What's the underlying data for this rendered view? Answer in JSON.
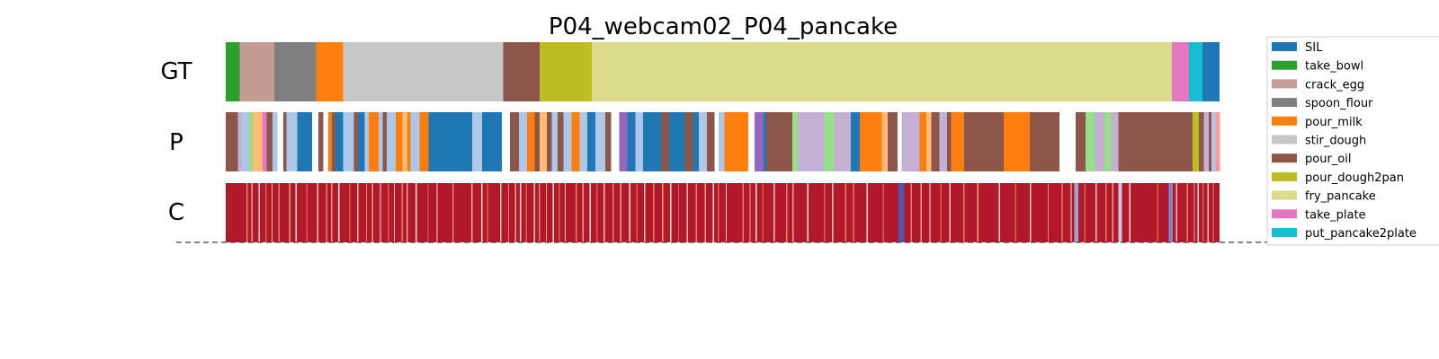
{
  "chart_data": {
    "type": "heatmap",
    "title": "P04_webcam02_P04_pancake",
    "rows": [
      "GT",
      "P",
      "C"
    ],
    "legend_position": "right",
    "classes": [
      {
        "name": "SIL",
        "color": "#1f77b4"
      },
      {
        "name": "take_bowl",
        "color": "#2ca02c"
      },
      {
        "name": "crack_egg",
        "color": "#c49c94"
      },
      {
        "name": "spoon_flour",
        "color": "#7f7f7f"
      },
      {
        "name": "pour_milk",
        "color": "#ff7f0e"
      },
      {
        "name": "stir_dough",
        "color": "#c7c7c7"
      },
      {
        "name": "pour_oil",
        "color": "#8c564b"
      },
      {
        "name": "pour_dough2pan",
        "color": "#bcbd22"
      },
      {
        "name": "fry_pancake",
        "color": "#dbdb8d"
      },
      {
        "name": "take_plate",
        "color": "#e377c2"
      },
      {
        "name": "put_pancake2plate",
        "color": "#17becf"
      }
    ],
    "gt_segments": [
      {
        "start": 0.0,
        "end": 1.4,
        "class": "take_bowl"
      },
      {
        "start": 1.4,
        "end": 4.9,
        "class": "crack_egg"
      },
      {
        "start": 4.9,
        "end": 9.1,
        "class": "spoon_flour"
      },
      {
        "start": 9.1,
        "end": 11.8,
        "class": "pour_milk"
      },
      {
        "start": 11.8,
        "end": 27.9,
        "class": "stir_dough"
      },
      {
        "start": 27.9,
        "end": 31.6,
        "class": "pour_oil"
      },
      {
        "start": 31.6,
        "end": 36.9,
        "class": "pour_dough2pan"
      },
      {
        "start": 36.9,
        "end": 95.2,
        "class": "fry_pancake"
      },
      {
        "start": 95.2,
        "end": 96.9,
        "class": "take_plate"
      },
      {
        "start": 96.9,
        "end": 98.3,
        "class": "put_pancake2plate"
      },
      {
        "start": 98.3,
        "end": 100.0,
        "class": "SIL"
      }
    ],
    "pred_segments": [
      {
        "start": 0.0,
        "end": 1.2,
        "color": "#8c564b"
      },
      {
        "start": 1.2,
        "end": 1.6,
        "color": "#c5b0d5"
      },
      {
        "start": 1.6,
        "end": 2.3,
        "color": "#aec7e8"
      },
      {
        "start": 2.3,
        "end": 2.7,
        "color": "#98df8a"
      },
      {
        "start": 2.7,
        "end": 3.7,
        "color": "#ffbb78"
      },
      {
        "start": 3.7,
        "end": 4.1,
        "color": "#e377c2"
      },
      {
        "start": 4.1,
        "end": 4.7,
        "color": "#8c564b"
      },
      {
        "start": 4.7,
        "end": 5.2,
        "color": "#aec7e8"
      },
      {
        "start": 5.2,
        "end": 5.8,
        "color": "#ffffff"
      },
      {
        "start": 5.8,
        "end": 6.1,
        "color": "#8c564b"
      },
      {
        "start": 6.1,
        "end": 7.2,
        "color": "#aec7e8"
      },
      {
        "start": 7.2,
        "end": 8.7,
        "color": "#1f77b4"
      },
      {
        "start": 8.7,
        "end": 9.3,
        "color": "#ffffff"
      },
      {
        "start": 9.3,
        "end": 9.8,
        "color": "#8c564b"
      },
      {
        "start": 9.8,
        "end": 10.3,
        "color": "#ffffff"
      },
      {
        "start": 10.3,
        "end": 10.7,
        "color": "#ff7f0e"
      },
      {
        "start": 10.7,
        "end": 11.0,
        "color": "#8c564b"
      },
      {
        "start": 11.0,
        "end": 11.8,
        "color": "#1f77b4"
      },
      {
        "start": 11.8,
        "end": 12.9,
        "color": "#aec7e8"
      },
      {
        "start": 12.9,
        "end": 13.3,
        "color": "#8c564b"
      },
      {
        "start": 13.3,
        "end": 14.0,
        "color": "#1f77b4"
      },
      {
        "start": 14.0,
        "end": 14.4,
        "color": "#aec7e8"
      },
      {
        "start": 14.4,
        "end": 15.4,
        "color": "#ff7f0e"
      },
      {
        "start": 15.4,
        "end": 15.8,
        "color": "#aec7e8"
      },
      {
        "start": 15.8,
        "end": 16.2,
        "color": "#8c564b"
      },
      {
        "start": 16.2,
        "end": 17.1,
        "color": "#aec7e8"
      },
      {
        "start": 17.1,
        "end": 17.8,
        "color": "#ff7f0e"
      },
      {
        "start": 17.8,
        "end": 18.3,
        "color": "#ffbb78"
      },
      {
        "start": 18.3,
        "end": 18.6,
        "color": "#ff7f0e"
      },
      {
        "start": 18.6,
        "end": 19.5,
        "color": "#aec7e8"
      },
      {
        "start": 19.5,
        "end": 20.4,
        "color": "#ff7f0e"
      },
      {
        "start": 20.4,
        "end": 24.8,
        "color": "#1f77b4"
      },
      {
        "start": 24.8,
        "end": 25.8,
        "color": "#aec7e8"
      },
      {
        "start": 25.8,
        "end": 27.8,
        "color": "#1f77b4"
      },
      {
        "start": 27.8,
        "end": 28.6,
        "color": "#ffffff"
      },
      {
        "start": 28.6,
        "end": 29.5,
        "color": "#8c564b"
      },
      {
        "start": 29.5,
        "end": 30.3,
        "color": "#aec7e8"
      },
      {
        "start": 30.3,
        "end": 31.1,
        "color": "#ff7f0e"
      },
      {
        "start": 31.1,
        "end": 31.6,
        "color": "#8c564b"
      },
      {
        "start": 31.6,
        "end": 32.3,
        "color": "#ffbb78"
      },
      {
        "start": 32.3,
        "end": 32.8,
        "color": "#8c564b"
      },
      {
        "start": 32.8,
        "end": 33.4,
        "color": "#aec7e8"
      },
      {
        "start": 33.4,
        "end": 34.0,
        "color": "#8c564b"
      },
      {
        "start": 34.0,
        "end": 34.8,
        "color": "#aec7e8"
      },
      {
        "start": 34.8,
        "end": 35.6,
        "color": "#ff7f0e"
      },
      {
        "start": 35.6,
        "end": 36.4,
        "color": "#aec7e8"
      },
      {
        "start": 36.4,
        "end": 37.2,
        "color": "#1f77b4"
      },
      {
        "start": 37.2,
        "end": 38.2,
        "color": "#aec7e8"
      },
      {
        "start": 38.2,
        "end": 38.8,
        "color": "#8c564b"
      },
      {
        "start": 38.8,
        "end": 39.6,
        "color": "#ffffff"
      },
      {
        "start": 39.6,
        "end": 40.4,
        "color": "#9467bd"
      },
      {
        "start": 40.4,
        "end": 41.2,
        "color": "#1f77b4"
      },
      {
        "start": 41.2,
        "end": 42.0,
        "color": "#aec7e8"
      },
      {
        "start": 42.0,
        "end": 43.8,
        "color": "#1f77b4"
      },
      {
        "start": 43.8,
        "end": 44.6,
        "color": "#8c564b"
      },
      {
        "start": 44.6,
        "end": 46.2,
        "color": "#1f77b4"
      },
      {
        "start": 46.2,
        "end": 47.0,
        "color": "#8c564b"
      },
      {
        "start": 47.0,
        "end": 47.6,
        "color": "#1f77b4"
      },
      {
        "start": 47.6,
        "end": 48.4,
        "color": "#aec7e8"
      },
      {
        "start": 48.4,
        "end": 49.2,
        "color": "#8c564b"
      },
      {
        "start": 49.2,
        "end": 49.6,
        "color": "#ffffff"
      },
      {
        "start": 49.6,
        "end": 50.2,
        "color": "#aec7e8"
      },
      {
        "start": 50.2,
        "end": 52.6,
        "color": "#ff7f0e"
      },
      {
        "start": 52.6,
        "end": 53.2,
        "color": "#ffffff"
      },
      {
        "start": 53.2,
        "end": 54.1,
        "color": "#9467bd"
      },
      {
        "start": 54.1,
        "end": 54.4,
        "color": "#1f77b4"
      },
      {
        "start": 54.4,
        "end": 57.0,
        "color": "#8c564b"
      },
      {
        "start": 57.0,
        "end": 57.6,
        "color": "#98df8a"
      },
      {
        "start": 57.6,
        "end": 60.2,
        "color": "#c5b0d5"
      },
      {
        "start": 60.2,
        "end": 61.2,
        "color": "#98df8a"
      },
      {
        "start": 61.2,
        "end": 62.9,
        "color": "#c5b0d5"
      },
      {
        "start": 62.9,
        "end": 63.8,
        "color": "#1f77b4"
      },
      {
        "start": 63.8,
        "end": 66.0,
        "color": "#ff7f0e"
      },
      {
        "start": 66.0,
        "end": 66.6,
        "color": "#ffbb78"
      },
      {
        "start": 66.6,
        "end": 67.6,
        "color": "#8c564b"
      },
      {
        "start": 67.6,
        "end": 68.0,
        "color": "#ffffff"
      },
      {
        "start": 68.0,
        "end": 69.8,
        "color": "#c5b0d5"
      },
      {
        "start": 69.8,
        "end": 70.5,
        "color": "#ff7f0e"
      },
      {
        "start": 70.5,
        "end": 71.0,
        "color": "#ffbb78"
      },
      {
        "start": 71.0,
        "end": 71.8,
        "color": "#8c564b"
      },
      {
        "start": 71.8,
        "end": 72.6,
        "color": "#c5b0d5"
      },
      {
        "start": 72.6,
        "end": 73.0,
        "color": "#8c564b"
      },
      {
        "start": 73.0,
        "end": 74.3,
        "color": "#ff7f0e"
      },
      {
        "start": 74.3,
        "end": 78.3,
        "color": "#8c564b"
      },
      {
        "start": 78.3,
        "end": 80.9,
        "color": "#ff7f0e"
      },
      {
        "start": 80.9,
        "end": 83.9,
        "color": "#8c564b"
      },
      {
        "start": 83.9,
        "end": 85.5,
        "color": "#ffffff"
      },
      {
        "start": 85.5,
        "end": 86.5,
        "color": "#8c564b"
      },
      {
        "start": 86.5,
        "end": 87.4,
        "color": "#98df8a"
      },
      {
        "start": 87.4,
        "end": 88.4,
        "color": "#c5b0d5"
      },
      {
        "start": 88.4,
        "end": 89.1,
        "color": "#98df8a"
      },
      {
        "start": 89.1,
        "end": 89.8,
        "color": "#c5b0d5"
      },
      {
        "start": 89.8,
        "end": 97.3,
        "color": "#8c564b"
      },
      {
        "start": 97.3,
        "end": 97.9,
        "color": "#bcbd22"
      },
      {
        "start": 97.9,
        "end": 98.4,
        "color": "#8c564b"
      },
      {
        "start": 98.4,
        "end": 98.9,
        "color": "#c5b0d5"
      },
      {
        "start": 98.9,
        "end": 99.2,
        "color": "#8c564b"
      },
      {
        "start": 99.2,
        "end": 99.6,
        "color": "#aec7e8"
      },
      {
        "start": 99.6,
        "end": 100.0,
        "color": "#ff9896"
      }
    ],
    "confidence_base_color": "#b2182b",
    "confidence_dips": [
      2.1,
      2.6,
      3.3,
      4.0,
      4.6,
      5.3,
      6.4,
      7.0,
      8.1,
      9.2,
      10.1,
      10.6,
      11.3,
      12.4,
      13.2,
      14.1,
      14.7,
      15.5,
      16.3,
      16.9,
      17.7,
      18.2,
      19.1,
      20.3,
      21.2,
      22.8,
      24.7,
      25.7,
      26.3,
      27.6,
      28.4,
      29.1,
      29.6,
      30.2,
      31.0,
      31.5,
      32.2,
      32.9,
      33.5,
      34.1,
      35.2,
      35.9,
      36.6,
      37.3,
      38.0,
      38.9,
      39.7,
      40.6,
      41.3,
      42.1,
      43.0,
      43.9,
      44.7,
      45.5,
      46.4,
      47.3,
      48.2,
      49.0,
      49.5,
      50.3,
      52.0,
      52.7,
      53.3,
      54.0,
      55.1,
      56.4,
      57.0,
      58.5,
      60.2,
      61.0,
      62.3,
      63.1,
      64.5,
      66.1,
      67.7,
      68.9,
      69.9,
      70.8,
      71.9,
      72.8,
      74.2,
      75.6,
      77.8,
      79.4,
      80.9,
      82.7,
      84.1,
      85.0,
      86.4,
      87.5,
      88.5,
      89.2,
      90.9,
      93.7,
      95.6,
      96.7,
      97.4,
      97.8,
      98.3,
      98.8,
      99.3
    ],
    "confidence_blue_bands": [
      {
        "start": 67.7,
        "end": 68.3,
        "color": "#4c59a6"
      },
      {
        "start": 85.4,
        "end": 85.8,
        "color": "#9aa7d6"
      },
      {
        "start": 89.8,
        "end": 90.2,
        "color": "#c3c8e6"
      },
      {
        "start": 94.9,
        "end": 95.3,
        "color": "#7c86c8"
      }
    ]
  }
}
